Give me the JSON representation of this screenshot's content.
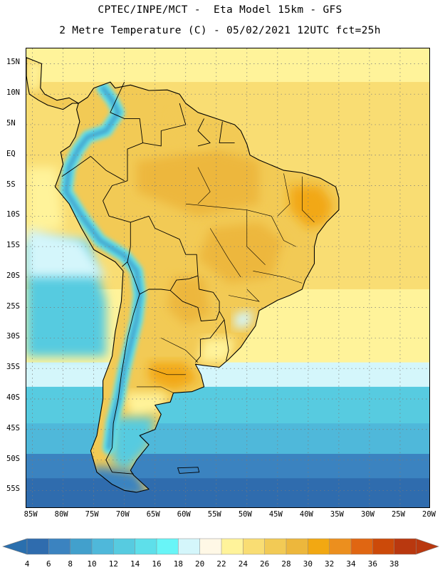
{
  "title": {
    "line1": "CPTEC/INPE/MCT -  Eta Model 15km - GFS",
    "line2": "2 Metre Temperature (C) - 05/02/2021 12UTC fct=25h"
  },
  "map": {
    "region": "South America",
    "lat_range": [
      -58,
      17.5
    ],
    "lon_range": [
      -86,
      -20
    ],
    "lat_ticks": [
      {
        "value": 15,
        "label": "15N"
      },
      {
        "value": 10,
        "label": "10N"
      },
      {
        "value": 5,
        "label": "5N"
      },
      {
        "value": 0,
        "label": "EQ"
      },
      {
        "value": -5,
        "label": "5S"
      },
      {
        "value": -10,
        "label": "10S"
      },
      {
        "value": -15,
        "label": "15S"
      },
      {
        "value": -20,
        "label": "20S"
      },
      {
        "value": -25,
        "label": "25S"
      },
      {
        "value": -30,
        "label": "30S"
      },
      {
        "value": -35,
        "label": "35S"
      },
      {
        "value": -40,
        "label": "40S"
      },
      {
        "value": -45,
        "label": "45S"
      },
      {
        "value": -50,
        "label": "50S"
      },
      {
        "value": -55,
        "label": "55S"
      }
    ],
    "lon_ticks": [
      {
        "value": -85,
        "label": "85W"
      },
      {
        "value": -80,
        "label": "80W"
      },
      {
        "value": -75,
        "label": "75W"
      },
      {
        "value": -70,
        "label": "70W"
      },
      {
        "value": -65,
        "label": "65W"
      },
      {
        "value": -60,
        "label": "60W"
      },
      {
        "value": -55,
        "label": "55W"
      },
      {
        "value": -50,
        "label": "50W"
      },
      {
        "value": -45,
        "label": "45W"
      },
      {
        "value": -40,
        "label": "40W"
      },
      {
        "value": -35,
        "label": "35W"
      },
      {
        "value": -30,
        "label": "30W"
      },
      {
        "value": -25,
        "label": "25W"
      },
      {
        "value": -20,
        "label": "20W"
      }
    ]
  },
  "colorbar": {
    "min": 2,
    "max": 40,
    "labels": [
      "4",
      "6",
      "8",
      "10",
      "12",
      "14",
      "16",
      "18",
      "20",
      "22",
      "24",
      "26",
      "28",
      "30",
      "32",
      "34",
      "36",
      "38"
    ],
    "under_color": "#2a6fae",
    "over_color": "#b9380f",
    "colors": [
      "#2f6cae",
      "#3b83c0",
      "#42a0cc",
      "#4fb8da",
      "#57cbe0",
      "#5edfea",
      "#68f5f7",
      "#d4f6fb",
      "#fff8e6",
      "#fff39a",
      "#f9dd73",
      "#f2ca55",
      "#edb73c",
      "#f2a812",
      "#ec8f1e",
      "#e06612",
      "#cc4a09",
      "#b9380f"
    ]
  },
  "palette": {
    "ocean_tropical": "#f9dd73",
    "ocean_subtropical": "#fff39a",
    "ocean_cool": "#d4f6fb",
    "ocean_cold": "#57cbe0",
    "ocean_colder": "#3b83c0",
    "land_warm": "#f2ca55",
    "land_hot": "#edb73c",
    "land_hotter": "#f2a812",
    "andes": "#5edfea",
    "andes_high": "#42a0cc"
  }
}
